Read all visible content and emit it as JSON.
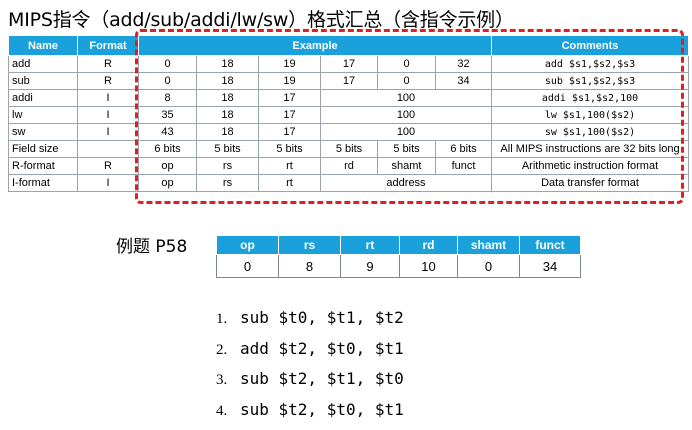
{
  "title": "MIPS指令（add/sub/addi/lw/sw）格式汇总（含指令示例）",
  "main_table": {
    "headers": [
      "Name",
      "Format",
      "Example",
      "Comments"
    ],
    "rows": [
      {
        "name": "add",
        "format": "R",
        "fields": [
          "0",
          "18",
          "19",
          "17",
          "0",
          "32"
        ],
        "comment": "add $s1,$s2,$s3"
      },
      {
        "name": "sub",
        "format": "R",
        "fields": [
          "0",
          "18",
          "19",
          "17",
          "0",
          "34"
        ],
        "comment": "sub $s1,$s2,$s3"
      },
      {
        "name": "addi",
        "format": "I",
        "fields": [
          "8",
          "18",
          "17",
          "100"
        ],
        "comment": "addi $s1,$s2,100"
      },
      {
        "name": "lw",
        "format": "I",
        "fields": [
          "35",
          "18",
          "17",
          "100"
        ],
        "comment": "lw $s1,100($s2)"
      },
      {
        "name": "sw",
        "format": "I",
        "fields": [
          "43",
          "18",
          "17",
          "100"
        ],
        "comment": "sw $s1,100($s2)"
      },
      {
        "name": "Field size",
        "format": "",
        "fields": [
          "6 bits",
          "5 bits",
          "5 bits",
          "5 bits",
          "5 bits",
          "6 bits"
        ],
        "comment": "All MIPS instructions are 32 bits long"
      },
      {
        "name": "R-format",
        "format": "R",
        "fields": [
          "op",
          "rs",
          "rt",
          "rd",
          "shamt",
          "funct"
        ],
        "comment": "Arithmetic instruction format"
      },
      {
        "name": "I-format",
        "format": "I",
        "fields": [
          "op",
          "rs",
          "rt",
          "address"
        ],
        "comment": "Data transfer format"
      }
    ]
  },
  "example": {
    "label": "例题 P58",
    "headers": [
      "op",
      "rs",
      "rt",
      "rd",
      "shamt",
      "funct"
    ],
    "values": [
      "0",
      "8",
      "9",
      "10",
      "0",
      "34"
    ]
  },
  "instructions": [
    {
      "num": "1.",
      "text": "sub $t0, $t1, $t2"
    },
    {
      "num": "2.",
      "text": "add $t2, $t0, $t1"
    },
    {
      "num": "3.",
      "text": "sub $t2, $t1, $t0"
    },
    {
      "num": "4.",
      "text": "sub $t2, $t0, $t1"
    }
  ]
}
